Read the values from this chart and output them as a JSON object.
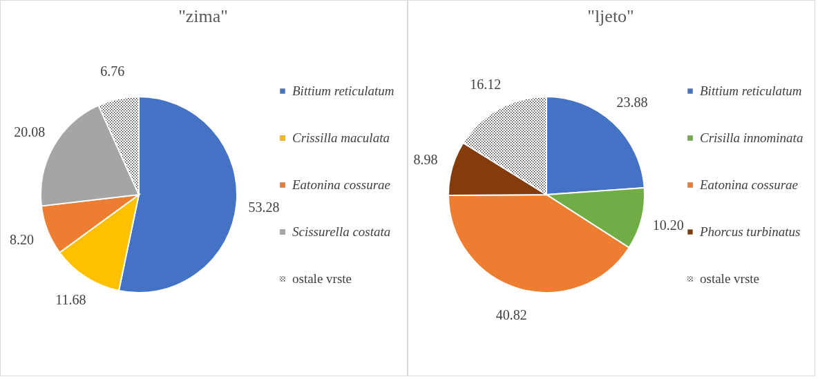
{
  "chart_data": [
    {
      "type": "pie",
      "title": "\"zima\"",
      "categories": [
        "Bittium reticulatum",
        "Crissilla maculata",
        "Eatonina cossurae",
        "Scissurella costata",
        "ostale vrste"
      ],
      "values": [
        53.28,
        11.68,
        8.2,
        20.08,
        6.76
      ],
      "colors": [
        "#4472c4",
        "#ffc000",
        "#ed7d31",
        "#a5a5a5",
        "#ffffff"
      ],
      "value_labels": [
        "53.28",
        "11.68",
        "8.20",
        "20.08",
        "6.76"
      ],
      "legend": "right"
    },
    {
      "type": "pie",
      "title": "\"ljeto\"",
      "categories": [
        "Bittium reticulatum",
        "Crisilla innominata",
        "Eatonina cossurae",
        "Phorcus turbinatus",
        "ostale vrste"
      ],
      "values": [
        23.88,
        10.2,
        40.82,
        8.98,
        16.12
      ],
      "colors": [
        "#4472c4",
        "#70ad47",
        "#ed7d31",
        "#843c0c",
        "#ffffff"
      ],
      "value_labels": [
        "23.88",
        "10.20",
        "40.82",
        "8.98",
        "16.12"
      ],
      "legend": "right"
    }
  ]
}
